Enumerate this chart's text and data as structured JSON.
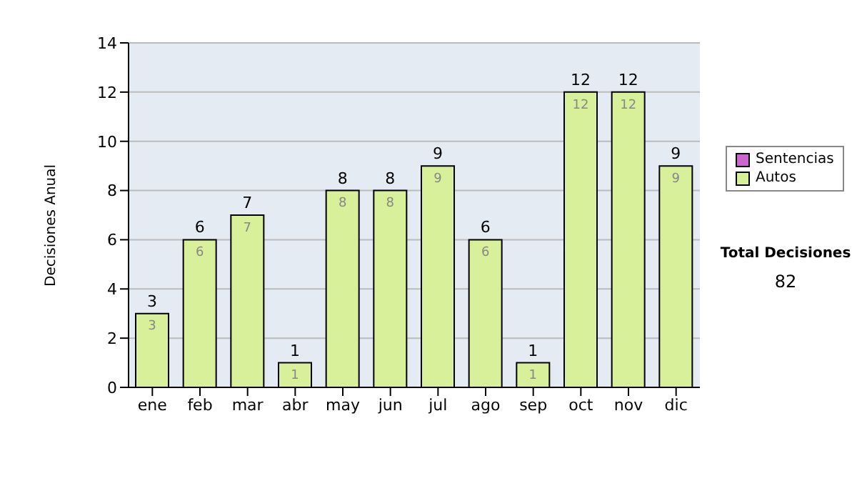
{
  "chart_data": {
    "type": "bar",
    "ylabel": "Decisiones Anual",
    "categories": [
      "ene",
      "feb",
      "mar",
      "abr",
      "may",
      "jun",
      "jul",
      "ago",
      "sep",
      "oct",
      "nov",
      "dic"
    ],
    "stacked": true,
    "series": [
      {
        "name": "Sentencias",
        "color": "#cc66cc",
        "values": [
          0,
          0,
          0,
          0,
          0,
          0,
          0,
          0,
          0,
          0,
          0,
          0
        ]
      },
      {
        "name": "Autos",
        "color": "#d8f09a",
        "values": [
          3,
          6,
          7,
          1,
          8,
          8,
          9,
          6,
          1,
          12,
          12,
          9
        ],
        "value_labels": [
          "3",
          "6",
          "7",
          "1",
          "8",
          "8",
          "9",
          "6",
          "1",
          "12",
          "12",
          "9"
        ]
      }
    ],
    "totals": [
      "3",
      "6",
      "7",
      "1",
      "8",
      "8",
      "9",
      "6",
      "1",
      "12",
      "12",
      "9"
    ],
    "ylim": [
      0,
      14
    ],
    "yticks": [
      0,
      2,
      4,
      6,
      8,
      10,
      12,
      14
    ],
    "grid": "y",
    "legend": "right",
    "annotations": [
      "Total Decisiones",
      "82"
    ]
  }
}
